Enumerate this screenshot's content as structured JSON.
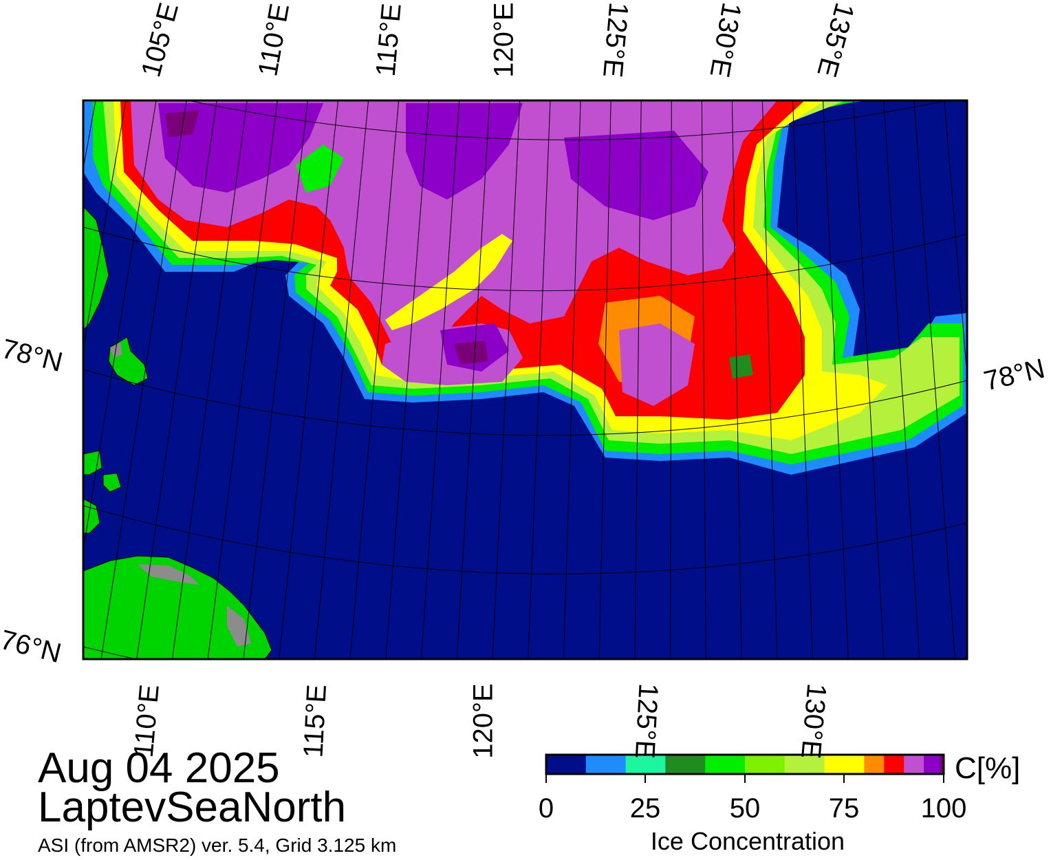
{
  "map": {
    "top_lon_labels": [
      "105°E",
      "110°E",
      "115°E",
      "120°E",
      "125°E",
      "130°E",
      "135°E"
    ],
    "bottom_lon_labels": [
      "110°E",
      "115°E",
      "120°E",
      "125°E",
      "130°E"
    ],
    "lat_labels": {
      "lat78_left": "78°N",
      "lat78_right": "78°N",
      "lat76_left": "76°N"
    },
    "colors": {
      "open_water": "#000e8a",
      "land": "#00d400",
      "land_ice": "#8c8c8c",
      "frame": "#000000"
    }
  },
  "title": {
    "date": "Aug 04 2025",
    "region": "LaptevSeaNorth",
    "subtitle": "ASI (from AMSR2) ver. 5.4,  Grid 3.125 km"
  },
  "colorbar": {
    "title": "Ice Concentration",
    "unit": "C[%]",
    "ticks": [
      "0",
      "25",
      "50",
      "75",
      "100"
    ],
    "range": [
      0,
      100
    ],
    "bin_colors": [
      "#000e8a",
      "#1e8cff",
      "#1ef5a0",
      "#208c20",
      "#00ee00",
      "#7ff000",
      "#b4f03c",
      "#ffff00",
      "#ff8c00",
      "#ff0000",
      "#c050d0",
      "#8c00c8",
      "#7a007a"
    ]
  }
}
